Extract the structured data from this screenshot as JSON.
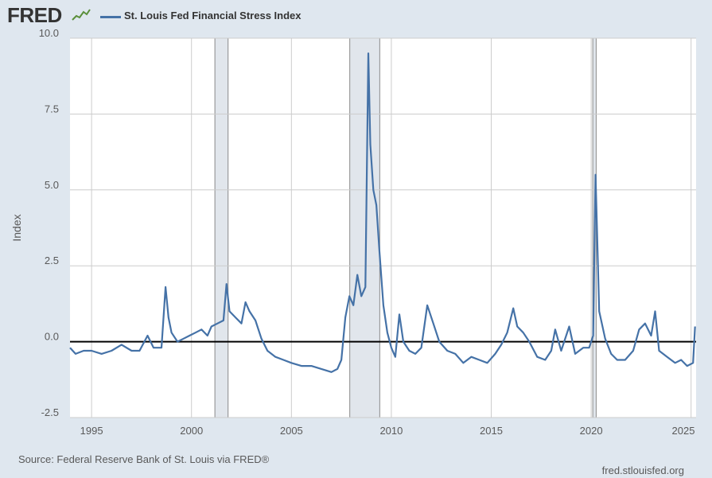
{
  "brand": {
    "logo_text": "FRED"
  },
  "colors": {
    "series": "#4572a7",
    "recession": "#e1e6ec",
    "background": "#dfe7ef",
    "zero_line": "#000000"
  },
  "footer": {
    "source": "Source: Federal Reserve Bank of St. Louis via FRED®",
    "url": "fred.stlouisfed.org"
  },
  "chart_data": {
    "type": "line",
    "title": "",
    "xlabel": "",
    "ylabel": "Index",
    "xlim": [
      1993.92,
      2025.25
    ],
    "ylim": [
      -2.5,
      10.0
    ],
    "x_ticks": [
      "1995",
      "2000",
      "2005",
      "2010",
      "2015",
      "2020",
      "2025"
    ],
    "y_ticks": [
      "10.0",
      "7.5",
      "5.0",
      "2.5",
      "0.0",
      "-2.5"
    ],
    "grid": true,
    "legend_position": "top-left",
    "reference_line": 0,
    "recessions": [
      [
        2001.17,
        2001.83
      ],
      [
        2007.92,
        2009.42
      ],
      [
        2020.08,
        2020.25
      ]
    ],
    "series": [
      {
        "name": "St. Louis Fed Financial Stress Index",
        "color": "#4572a7",
        "points": [
          [
            1993.92,
            -0.2
          ],
          [
            1994.2,
            -0.4
          ],
          [
            1994.6,
            -0.3
          ],
          [
            1995.0,
            -0.3
          ],
          [
            1995.5,
            -0.4
          ],
          [
            1996.0,
            -0.3
          ],
          [
            1996.5,
            -0.1
          ],
          [
            1997.0,
            -0.3
          ],
          [
            1997.4,
            -0.3
          ],
          [
            1997.8,
            0.2
          ],
          [
            1998.1,
            -0.2
          ],
          [
            1998.5,
            -0.2
          ],
          [
            1998.7,
            1.8
          ],
          [
            1998.85,
            0.8
          ],
          [
            1999.0,
            0.3
          ],
          [
            1999.3,
            0.0
          ],
          [
            1999.6,
            0.1
          ],
          [
            1999.9,
            0.2
          ],
          [
            2000.2,
            0.3
          ],
          [
            2000.5,
            0.4
          ],
          [
            2000.8,
            0.2
          ],
          [
            2001.0,
            0.5
          ],
          [
            2001.3,
            0.6
          ],
          [
            2001.6,
            0.7
          ],
          [
            2001.75,
            1.9
          ],
          [
            2001.9,
            1.0
          ],
          [
            2002.2,
            0.8
          ],
          [
            2002.5,
            0.6
          ],
          [
            2002.7,
            1.3
          ],
          [
            2002.9,
            1.0
          ],
          [
            2003.2,
            0.7
          ],
          [
            2003.5,
            0.1
          ],
          [
            2003.8,
            -0.3
          ],
          [
            2004.2,
            -0.5
          ],
          [
            2004.6,
            -0.6
          ],
          [
            2005.0,
            -0.7
          ],
          [
            2005.5,
            -0.8
          ],
          [
            2006.0,
            -0.8
          ],
          [
            2006.5,
            -0.9
          ],
          [
            2007.0,
            -1.0
          ],
          [
            2007.3,
            -0.9
          ],
          [
            2007.5,
            -0.6
          ],
          [
            2007.7,
            0.8
          ],
          [
            2007.9,
            1.5
          ],
          [
            2008.1,
            1.2
          ],
          [
            2008.3,
            2.2
          ],
          [
            2008.5,
            1.5
          ],
          [
            2008.7,
            1.8
          ],
          [
            2008.85,
            9.5
          ],
          [
            2008.95,
            6.5
          ],
          [
            2009.1,
            5.0
          ],
          [
            2009.25,
            4.5
          ],
          [
            2009.4,
            3.0
          ],
          [
            2009.6,
            1.2
          ],
          [
            2009.8,
            0.3
          ],
          [
            2010.0,
            -0.2
          ],
          [
            2010.2,
            -0.5
          ],
          [
            2010.4,
            0.9
          ],
          [
            2010.6,
            0.0
          ],
          [
            2010.9,
            -0.3
          ],
          [
            2011.2,
            -0.4
          ],
          [
            2011.5,
            -0.2
          ],
          [
            2011.8,
            1.2
          ],
          [
            2012.1,
            0.6
          ],
          [
            2012.4,
            0.0
          ],
          [
            2012.8,
            -0.3
          ],
          [
            2013.2,
            -0.4
          ],
          [
            2013.6,
            -0.7
          ],
          [
            2014.0,
            -0.5
          ],
          [
            2014.4,
            -0.6
          ],
          [
            2014.8,
            -0.7
          ],
          [
            2015.2,
            -0.4
          ],
          [
            2015.5,
            -0.1
          ],
          [
            2015.8,
            0.3
          ],
          [
            2016.1,
            1.1
          ],
          [
            2016.3,
            0.5
          ],
          [
            2016.6,
            0.3
          ],
          [
            2016.9,
            0.0
          ],
          [
            2017.3,
            -0.5
          ],
          [
            2017.7,
            -0.6
          ],
          [
            2018.0,
            -0.3
          ],
          [
            2018.2,
            0.4
          ],
          [
            2018.5,
            -0.3
          ],
          [
            2018.9,
            0.5
          ],
          [
            2019.2,
            -0.4
          ],
          [
            2019.6,
            -0.2
          ],
          [
            2019.9,
            -0.2
          ],
          [
            2020.1,
            0.2
          ],
          [
            2020.22,
            5.5
          ],
          [
            2020.4,
            1.0
          ],
          [
            2020.7,
            0.1
          ],
          [
            2021.0,
            -0.4
          ],
          [
            2021.3,
            -0.6
          ],
          [
            2021.7,
            -0.6
          ],
          [
            2022.1,
            -0.3
          ],
          [
            2022.4,
            0.4
          ],
          [
            2022.7,
            0.6
          ],
          [
            2023.0,
            0.2
          ],
          [
            2023.2,
            1.0
          ],
          [
            2023.4,
            -0.3
          ],
          [
            2023.8,
            -0.5
          ],
          [
            2024.2,
            -0.7
          ],
          [
            2024.5,
            -0.6
          ],
          [
            2024.8,
            -0.8
          ],
          [
            2025.1,
            -0.7
          ],
          [
            2025.2,
            0.5
          ]
        ]
      }
    ]
  }
}
